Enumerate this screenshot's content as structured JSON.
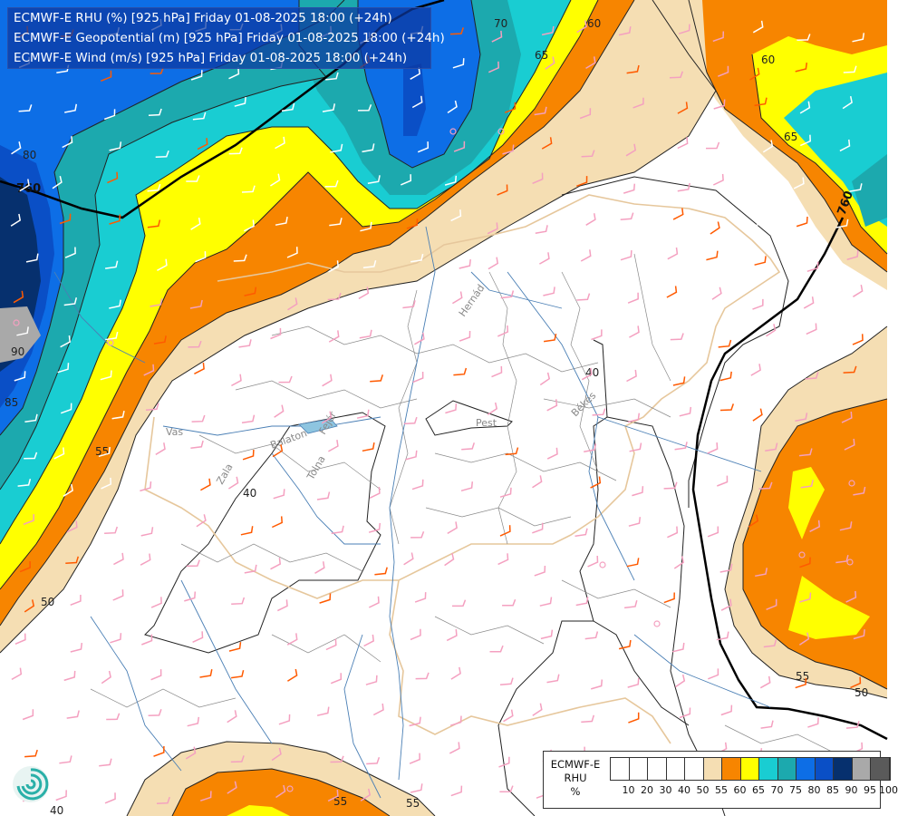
{
  "header": {
    "lines": [
      "ECMWF-E RHU (%) [925 hPa] Friday 01-08-2025 18:00 (+24h)",
      "ECMWF-E Geopotential (m) [925 hPa] Friday 01-08-2025 18:00 (+24h)",
      "ECMWF-E Wind (m/s) [925 hPa] Friday 01-08-2025 18:00 (+24h)"
    ]
  },
  "legend": {
    "title_lines": [
      "ECMWF-E",
      "RHU",
      "%"
    ],
    "colors": [
      "#ffffff",
      "#ffffff",
      "#ffffff",
      "#ffffff",
      "#ffffff",
      "#f5deb3",
      "#f78500",
      "#ffff00",
      "#19cdd2",
      "#1ca9ae",
      "#0d6ee6",
      "#0a4fc6",
      "#06306e",
      "#a9a9a9",
      "#5a5a5a"
    ],
    "labels": [
      "10",
      "20",
      "30",
      "40",
      "50",
      "55",
      "60",
      "65",
      "70",
      "75",
      "80",
      "85",
      "90",
      "95",
      "100"
    ]
  },
  "map_labels": {
    "rh_contours": [
      "70",
      "60",
      "65",
      "60",
      "65",
      "80",
      "90",
      "85",
      "55",
      "50",
      "40",
      "40",
      "55",
      "50",
      "55",
      "55",
      "40"
    ],
    "geopotential": [
      "760",
      "760"
    ],
    "rivers": [
      "Hernád",
      "Pest",
      "Vas",
      "Balaton",
      "Fejér",
      "Tolna",
      "Zala",
      "Békés"
    ]
  },
  "icons": {
    "logo": "ecmwf-swirl-logo",
    "station": "circle-station-icon",
    "wind": "wind-barb-icon"
  }
}
